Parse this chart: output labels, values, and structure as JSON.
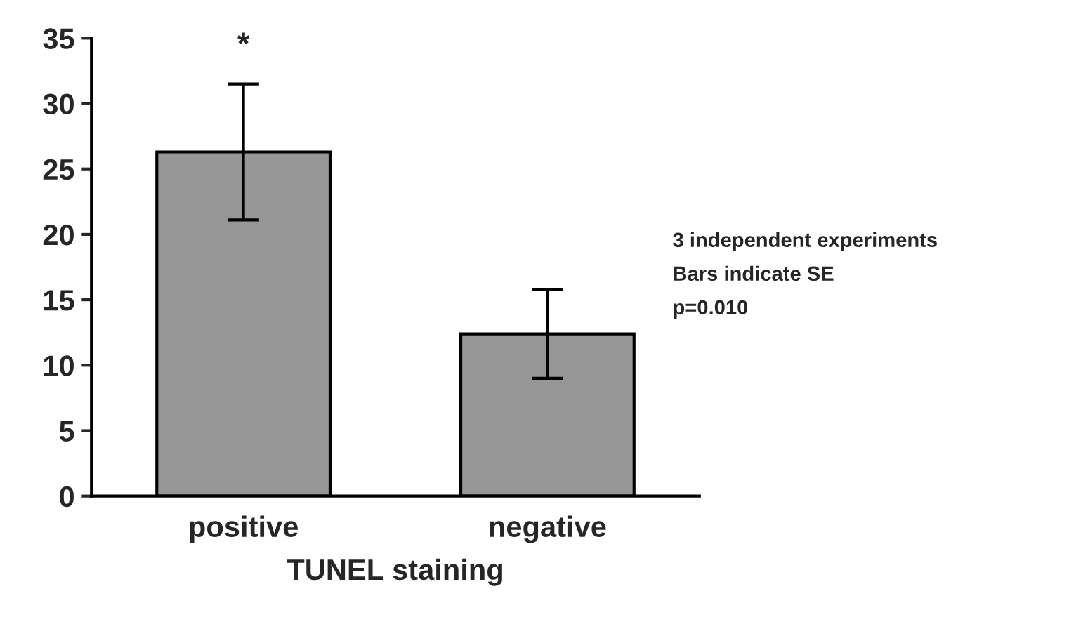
{
  "chart_data": {
    "type": "bar",
    "xlabel": "TUNEL staining",
    "categories": [
      "positive",
      "negative"
    ],
    "values": [
      26.3,
      12.4
    ],
    "errors": [
      5.2,
      3.4
    ],
    "color": "#969696",
    "ylim": [
      0,
      35
    ],
    "yticks": [
      0,
      5,
      10,
      15,
      20,
      25,
      30,
      35
    ],
    "grid": false,
    "legend": false,
    "annotations": [
      {
        "text": "*",
        "x": "positive",
        "y": 31.5
      },
      "3 independent experiments",
      "Bars indicate SE",
      "p=0.010"
    ]
  }
}
